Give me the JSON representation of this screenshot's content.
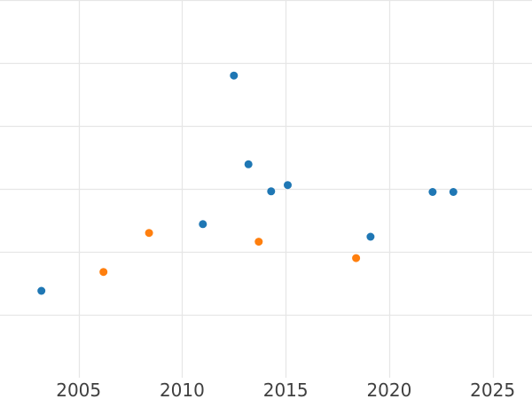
{
  "chart_data": {
    "type": "scatter",
    "title": "",
    "xlabel": "",
    "ylabel": "",
    "grid": true,
    "legend_visible": false,
    "y_tick_labels_visible": false,
    "x_ticks": [
      2005,
      2010,
      2015,
      2020,
      2025
    ],
    "x_tick_labels": [
      "2005",
      "2010",
      "2015",
      "2020",
      "2025"
    ],
    "xlim": [
      2001.2,
      2026.9
    ],
    "ylim": [
      0,
      6
    ],
    "y_gridline_values": [
      1,
      2,
      3,
      4,
      5,
      6
    ],
    "series": [
      {
        "name": "blue",
        "color": "#1f77b4",
        "points": [
          {
            "x": 2003.2,
            "y": 1.38
          },
          {
            "x": 2011.0,
            "y": 2.44
          },
          {
            "x": 2012.5,
            "y": 4.8
          },
          {
            "x": 2013.2,
            "y": 3.39
          },
          {
            "x": 2014.3,
            "y": 2.96
          },
          {
            "x": 2015.1,
            "y": 3.06
          },
          {
            "x": 2019.1,
            "y": 2.24
          },
          {
            "x": 2022.1,
            "y": 2.95
          },
          {
            "x": 2023.1,
            "y": 2.95
          }
        ]
      },
      {
        "name": "orange",
        "color": "#ff7f0e",
        "points": [
          {
            "x": 2006.2,
            "y": 1.68
          },
          {
            "x": 2008.4,
            "y": 2.3
          },
          {
            "x": 2013.7,
            "y": 2.16
          },
          {
            "x": 2018.4,
            "y": 1.9
          }
        ]
      }
    ],
    "colors": {
      "background": "#ffffff",
      "gridline": "#e6e6e6",
      "tick_label": "#404040"
    },
    "marker": {
      "shape": "circle",
      "radius_px": 4.5
    }
  }
}
